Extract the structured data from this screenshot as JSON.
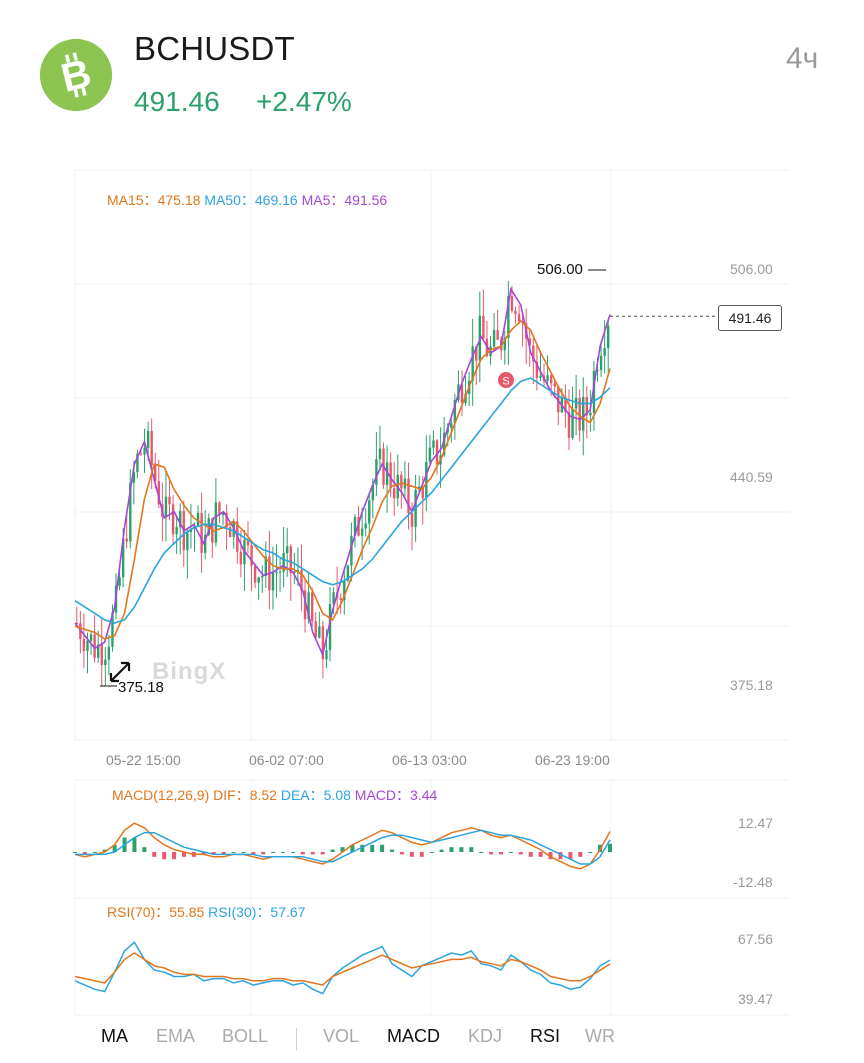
{
  "header": {
    "symbol": "BCHUSDT",
    "price": "491.46",
    "change": "+2.47%",
    "interval": "4ч",
    "coin_icon": "bitcoin-cash-icon"
  },
  "main_legend": {
    "ma15_label": "MA15：",
    "ma15_value": "475.18",
    "ma50_label": "MA50：",
    "ma50_value": "469.16",
    "ma5_label": "MA5：",
    "ma5_value": "491.56"
  },
  "price_axis": {
    "top": "506.00",
    "mid": "440.59",
    "bottom": "375.18"
  },
  "markers": {
    "high": "506.00",
    "low": "375.18",
    "last": "491.46",
    "sell_marker": "S"
  },
  "watermark": "BingX",
  "time_axis": [
    "05-22 15:00",
    "06-02 07:00",
    "06-13 03:00",
    "06-23 19:00"
  ],
  "macd_legend": {
    "title": "MACD(12,26,9)",
    "dif_label": "DIF：",
    "dif_value": "8.52",
    "dea_label": "DEA：",
    "dea_value": "5.08",
    "macd_label": "MACD：",
    "macd_value": "3.44"
  },
  "macd_axis": {
    "top": "12.47",
    "bottom": "-12.48"
  },
  "rsi_legend": {
    "rsi70_label": "RSI(70)：",
    "rsi70_value": "55.85",
    "rsi30_label": "RSI(30)：",
    "rsi30_value": "57.67"
  },
  "rsi_axis": {
    "top": "67.56",
    "bottom": "39.47"
  },
  "tabs": [
    "MA",
    "EMA",
    "BOLL",
    "VOL",
    "MACD",
    "KDJ",
    "RSI",
    "WR"
  ],
  "tabs_active": [
    "MA",
    "MACD",
    "RSI"
  ],
  "colors": {
    "up": "#2aa06b",
    "down": "#e5596b",
    "ma15": "#e3761c",
    "ma50": "#2aa4e0",
    "ma5": "#a546d8",
    "logo": "#8dc351"
  },
  "chart_data": {
    "type": "line",
    "title": "BCHUSDT",
    "interval": "4ч",
    "ylim": [
      375.18,
      506.0
    ],
    "x_ticks": [
      "05-22 15:00",
      "06-02 07:00",
      "06-13 03:00",
      "06-23 19:00"
    ],
    "series": [
      {
        "name": "MA5",
        "values": [
          395,
          391,
          387,
          389,
          400,
          425,
          445,
          452,
          440,
          428,
          430,
          424,
          426,
          420,
          428,
          430,
          425,
          418,
          414,
          410,
          411,
          413,
          411,
          405,
          392,
          385,
          399,
          410,
          420,
          430,
          438,
          445,
          440,
          436,
          430,
          438,
          446,
          450,
          460,
          470,
          478,
          485,
          480,
          482,
          500,
          495,
          480,
          474,
          468,
          464,
          460,
          459,
          462,
          482,
          492
        ]
      },
      {
        "name": "MA15",
        "values": [
          394,
          393,
          392,
          390,
          391,
          398,
          415,
          434,
          445,
          444,
          437,
          432,
          428,
          426,
          424,
          425,
          427,
          424,
          420,
          416,
          413,
          412,
          412,
          410,
          405,
          398,
          396,
          402,
          410,
          418,
          425,
          433,
          438,
          439,
          438,
          437,
          441,
          447,
          455,
          463,
          471,
          478,
          481,
          482,
          487,
          490,
          487,
          480,
          474,
          468,
          463,
          460,
          458,
          464,
          475
        ]
      },
      {
        "name": "MA50",
        "values": [
          402,
          400,
          398,
          396,
          395,
          396,
          400,
          406,
          412,
          417,
          420,
          423,
          425,
          426,
          426,
          425,
          424,
          422,
          420,
          418,
          417,
          415,
          414,
          412,
          410,
          408,
          407,
          408,
          410,
          412,
          415,
          419,
          423,
          427,
          430,
          433,
          436,
          440,
          444,
          448,
          452,
          456,
          460,
          464,
          468,
          471,
          472,
          470,
          468,
          466,
          465,
          464,
          464,
          466,
          469
        ]
      }
    ],
    "macd": {
      "title": "MACD(12,26,9)",
      "ylim": [
        -12.48,
        12.47
      ],
      "DIF": 8.52,
      "DEA": 5.08,
      "MACD": 3.44,
      "dif_values": [
        -1,
        -2,
        -1,
        0,
        3,
        9,
        12,
        10,
        6,
        3,
        1,
        0,
        -1,
        -1,
        -2,
        -2,
        -1,
        -1,
        -2,
        -3,
        -2,
        -2,
        -2,
        -3,
        -4,
        -5,
        -3,
        0,
        3,
        5,
        7,
        9,
        8,
        6,
        4,
        3,
        4,
        6,
        8,
        9,
        10,
        9,
        7,
        6,
        7,
        5,
        3,
        1,
        -2,
        -4,
        -6,
        -7,
        -5,
        1,
        8.5
      ],
      "dea_values": [
        -1,
        -1,
        -1,
        -1,
        0,
        3,
        6,
        8,
        8,
        6,
        4,
        2,
        1,
        0,
        -1,
        -1,
        -1,
        -1,
        -1,
        -2,
        -2,
        -2,
        -2,
        -2,
        -3,
        -4,
        -4,
        -2,
        0,
        2,
        4,
        6,
        7,
        7,
        6,
        5,
        4,
        5,
        6,
        7,
        8,
        9,
        8,
        7,
        7,
        6,
        5,
        3,
        1,
        -1,
        -3,
        -5,
        -5,
        -2,
        5.08
      ]
    },
    "rsi": {
      "ylim": [
        39.47,
        67.56
      ],
      "rsi70": [
        50,
        49,
        48,
        47,
        52,
        58,
        61,
        58,
        55,
        54,
        52,
        51,
        51,
        50,
        50,
        50,
        49,
        49,
        48,
        48,
        49,
        49,
        48,
        48,
        47,
        46,
        50,
        52,
        54,
        56,
        58,
        60,
        58,
        56,
        54,
        55,
        56,
        57,
        58,
        58,
        59,
        57,
        56,
        55,
        58,
        57,
        55,
        53,
        50,
        49,
        48,
        48,
        50,
        53,
        55.85
      ],
      "rsi30": [
        48,
        46,
        44,
        43,
        52,
        62,
        66,
        58,
        53,
        52,
        50,
        50,
        51,
        48,
        49,
        49,
        47,
        48,
        46,
        47,
        48,
        48,
        46,
        47,
        44,
        42,
        50,
        54,
        57,
        60,
        62,
        64,
        56,
        53,
        50,
        55,
        57,
        59,
        61,
        60,
        62,
        56,
        55,
        53,
        60,
        57,
        53,
        51,
        47,
        46,
        44,
        45,
        49,
        55,
        57.67
      ]
    }
  }
}
